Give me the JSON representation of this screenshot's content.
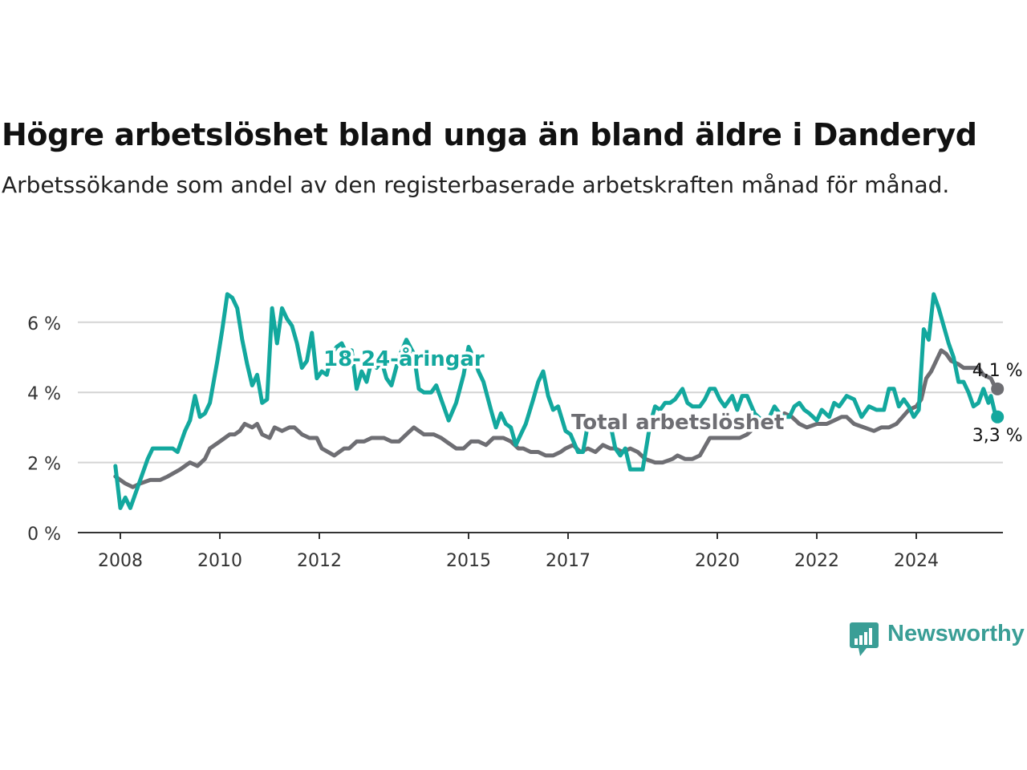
{
  "header": {
    "title": "Högre arbetslöshet bland unga än bland äldre i Danderyd",
    "subtitle": "Arbetssökande som andel av den registerbaserade arbetskraften månad för månad."
  },
  "brand": {
    "name": "Newsworthy",
    "icon": "bar-chart-speech-bubble-icon",
    "color": "#3a9e96"
  },
  "chart_data": {
    "type": "line",
    "grid": true,
    "ylim": [
      0,
      7
    ],
    "xlim": [
      2007.9,
      2025.6
    ],
    "yticks": [
      {
        "value": 0,
        "label": "0 %"
      },
      {
        "value": 2,
        "label": "2 %"
      },
      {
        "value": 4,
        "label": "4 %"
      },
      {
        "value": 6,
        "label": "6 %"
      }
    ],
    "xticks": [
      {
        "value": 2008,
        "label": "2008"
      },
      {
        "value": 2010,
        "label": "2010"
      },
      {
        "value": 2012,
        "label": "2012"
      },
      {
        "value": 2015,
        "label": "2015"
      },
      {
        "value": 2017,
        "label": "2017"
      },
      {
        "value": 2020,
        "label": "2020"
      },
      {
        "value": 2022,
        "label": "2022"
      },
      {
        "value": 2024,
        "label": "2024"
      }
    ],
    "series": [
      {
        "name": "Total arbetslöshet",
        "color": "#6e6e73",
        "end_label": "4,1 %",
        "points": [
          [
            2007.9,
            1.6
          ],
          [
            2008.1,
            1.4
          ],
          [
            2008.25,
            1.3
          ],
          [
            2008.4,
            1.4
          ],
          [
            2008.6,
            1.5
          ],
          [
            2008.8,
            1.5
          ],
          [
            2008.95,
            1.6
          ],
          [
            2009.2,
            1.8
          ],
          [
            2009.4,
            2.0
          ],
          [
            2009.55,
            1.9
          ],
          [
            2009.7,
            2.1
          ],
          [
            2009.8,
            2.4
          ],
          [
            2010.0,
            2.6
          ],
          [
            2010.2,
            2.8
          ],
          [
            2010.3,
            2.8
          ],
          [
            2010.4,
            2.9
          ],
          [
            2010.5,
            3.1
          ],
          [
            2010.65,
            3.0
          ],
          [
            2010.75,
            3.1
          ],
          [
            2010.85,
            2.8
          ],
          [
            2011.0,
            2.7
          ],
          [
            2011.1,
            3.0
          ],
          [
            2011.25,
            2.9
          ],
          [
            2011.4,
            3.0
          ],
          [
            2011.5,
            3.0
          ],
          [
            2011.65,
            2.8
          ],
          [
            2011.8,
            2.7
          ],
          [
            2011.95,
            2.7
          ],
          [
            2012.05,
            2.4
          ],
          [
            2012.3,
            2.2
          ],
          [
            2012.5,
            2.4
          ],
          [
            2012.6,
            2.4
          ],
          [
            2012.75,
            2.6
          ],
          [
            2012.9,
            2.6
          ],
          [
            2013.05,
            2.7
          ],
          [
            2013.3,
            2.7
          ],
          [
            2013.45,
            2.6
          ],
          [
            2013.6,
            2.6
          ],
          [
            2013.75,
            2.8
          ],
          [
            2013.9,
            3.0
          ],
          [
            2014.1,
            2.8
          ],
          [
            2014.3,
            2.8
          ],
          [
            2014.45,
            2.7
          ],
          [
            2014.55,
            2.6
          ],
          [
            2014.75,
            2.4
          ],
          [
            2014.9,
            2.4
          ],
          [
            2015.05,
            2.6
          ],
          [
            2015.2,
            2.6
          ],
          [
            2015.35,
            2.5
          ],
          [
            2015.5,
            2.7
          ],
          [
            2015.6,
            2.7
          ],
          [
            2015.7,
            2.7
          ],
          [
            2015.85,
            2.6
          ],
          [
            2016.0,
            2.4
          ],
          [
            2016.1,
            2.4
          ],
          [
            2016.25,
            2.3
          ],
          [
            2016.4,
            2.3
          ],
          [
            2016.55,
            2.2
          ],
          [
            2016.7,
            2.2
          ],
          [
            2016.85,
            2.3
          ],
          [
            2016.95,
            2.4
          ],
          [
            2017.1,
            2.5
          ],
          [
            2017.25,
            2.3
          ],
          [
            2017.4,
            2.4
          ],
          [
            2017.55,
            2.3
          ],
          [
            2017.7,
            2.5
          ],
          [
            2017.85,
            2.4
          ],
          [
            2017.95,
            2.4
          ],
          [
            2018.1,
            2.3
          ],
          [
            2018.25,
            2.4
          ],
          [
            2018.4,
            2.3
          ],
          [
            2018.55,
            2.1
          ],
          [
            2018.75,
            2.0
          ],
          [
            2018.9,
            2.0
          ],
          [
            2019.1,
            2.1
          ],
          [
            2019.2,
            2.2
          ],
          [
            2019.35,
            2.1
          ],
          [
            2019.5,
            2.1
          ],
          [
            2019.65,
            2.2
          ],
          [
            2019.85,
            2.7
          ],
          [
            2020.0,
            2.7
          ],
          [
            2020.2,
            2.7
          ],
          [
            2020.35,
            2.7
          ],
          [
            2020.45,
            2.7
          ],
          [
            2020.6,
            2.8
          ],
          [
            2020.75,
            3.0
          ],
          [
            2020.9,
            3.0
          ],
          [
            2021.05,
            3.1
          ],
          [
            2021.2,
            3.2
          ],
          [
            2021.35,
            3.4
          ],
          [
            2021.5,
            3.3
          ],
          [
            2021.65,
            3.1
          ],
          [
            2021.8,
            3.0
          ],
          [
            2022.0,
            3.1
          ],
          [
            2022.2,
            3.1
          ],
          [
            2022.35,
            3.2
          ],
          [
            2022.5,
            3.3
          ],
          [
            2022.6,
            3.3
          ],
          [
            2022.75,
            3.1
          ],
          [
            2022.95,
            3.0
          ],
          [
            2023.15,
            2.9
          ],
          [
            2023.3,
            3.0
          ],
          [
            2023.45,
            3.0
          ],
          [
            2023.6,
            3.1
          ],
          [
            2023.85,
            3.5
          ],
          [
            2024.0,
            3.6
          ],
          [
            2024.1,
            3.8
          ],
          [
            2024.2,
            4.4
          ],
          [
            2024.3,
            4.6
          ],
          [
            2024.4,
            4.9
          ],
          [
            2024.5,
            5.2
          ],
          [
            2024.6,
            5.1
          ],
          [
            2024.7,
            4.9
          ],
          [
            2024.85,
            4.8
          ],
          [
            2024.95,
            4.7
          ],
          [
            2025.1,
            4.7
          ],
          [
            2025.25,
            4.7
          ],
          [
            2025.35,
            4.5
          ],
          [
            2025.5,
            4.4
          ],
          [
            2025.6,
            4.1
          ]
        ]
      },
      {
        "name": "18-24-åringar",
        "color": "#13a89e",
        "end_label": "3,3 %",
        "points": [
          [
            2007.9,
            1.9
          ],
          [
            2008.0,
            0.7
          ],
          [
            2008.1,
            1.0
          ],
          [
            2008.2,
            0.7
          ],
          [
            2008.3,
            1.1
          ],
          [
            2008.45,
            1.7
          ],
          [
            2008.55,
            2.1
          ],
          [
            2008.65,
            2.4
          ],
          [
            2008.8,
            2.4
          ],
          [
            2008.95,
            2.4
          ],
          [
            2009.05,
            2.4
          ],
          [
            2009.15,
            2.3
          ],
          [
            2009.3,
            2.9
          ],
          [
            2009.4,
            3.2
          ],
          [
            2009.5,
            3.9
          ],
          [
            2009.6,
            3.3
          ],
          [
            2009.7,
            3.4
          ],
          [
            2009.8,
            3.7
          ],
          [
            2009.95,
            4.9
          ],
          [
            2010.05,
            5.8
          ],
          [
            2010.15,
            6.8
          ],
          [
            2010.25,
            6.7
          ],
          [
            2010.35,
            6.4
          ],
          [
            2010.45,
            5.5
          ],
          [
            2010.55,
            4.8
          ],
          [
            2010.65,
            4.2
          ],
          [
            2010.75,
            4.5
          ],
          [
            2010.85,
            3.7
          ],
          [
            2010.95,
            3.8
          ],
          [
            2011.05,
            6.4
          ],
          [
            2011.15,
            5.4
          ],
          [
            2011.25,
            6.4
          ],
          [
            2011.35,
            6.1
          ],
          [
            2011.45,
            5.9
          ],
          [
            2011.55,
            5.4
          ],
          [
            2011.65,
            4.7
          ],
          [
            2011.75,
            4.9
          ],
          [
            2011.85,
            5.7
          ],
          [
            2011.95,
            4.4
          ],
          [
            2012.05,
            4.6
          ],
          [
            2012.15,
            4.5
          ],
          [
            2012.25,
            5.1
          ],
          [
            2012.35,
            5.3
          ],
          [
            2012.45,
            5.4
          ],
          [
            2012.55,
            5.1
          ],
          [
            2012.65,
            5.2
          ],
          [
            2012.75,
            4.1
          ],
          [
            2012.85,
            4.6
          ],
          [
            2012.95,
            4.3
          ],
          [
            2013.05,
            4.9
          ],
          [
            2013.15,
            4.7
          ],
          [
            2013.25,
            4.9
          ],
          [
            2013.35,
            4.4
          ],
          [
            2013.45,
            4.2
          ],
          [
            2013.6,
            5.0
          ],
          [
            2013.75,
            5.5
          ],
          [
            2013.9,
            5.1
          ],
          [
            2014.0,
            4.1
          ],
          [
            2014.1,
            4.0
          ],
          [
            2014.25,
            4.0
          ],
          [
            2014.35,
            4.2
          ],
          [
            2014.5,
            3.6
          ],
          [
            2014.6,
            3.2
          ],
          [
            2014.75,
            3.7
          ],
          [
            2014.9,
            4.5
          ],
          [
            2015.0,
            5.3
          ],
          [
            2015.1,
            5.0
          ],
          [
            2015.2,
            4.6
          ],
          [
            2015.3,
            4.3
          ],
          [
            2015.45,
            3.5
          ],
          [
            2015.55,
            3.0
          ],
          [
            2015.65,
            3.4
          ],
          [
            2015.75,
            3.1
          ],
          [
            2015.85,
            3.0
          ],
          [
            2015.95,
            2.5
          ],
          [
            2016.05,
            2.8
          ],
          [
            2016.15,
            3.1
          ],
          [
            2016.3,
            3.8
          ],
          [
            2016.4,
            4.3
          ],
          [
            2016.5,
            4.6
          ],
          [
            2016.6,
            3.9
          ],
          [
            2016.7,
            3.5
          ],
          [
            2016.8,
            3.6
          ],
          [
            2016.95,
            2.9
          ],
          [
            2017.05,
            2.8
          ],
          [
            2017.2,
            2.3
          ],
          [
            2017.3,
            2.3
          ],
          [
            2017.4,
            3.1
          ],
          [
            2017.55,
            3.1
          ],
          [
            2017.75,
            3.1
          ],
          [
            2017.85,
            3.1
          ],
          [
            2017.95,
            2.4
          ],
          [
            2018.05,
            2.2
          ],
          [
            2018.15,
            2.4
          ],
          [
            2018.25,
            1.8
          ],
          [
            2018.35,
            1.8
          ],
          [
            2018.5,
            1.8
          ],
          [
            2018.65,
            3.1
          ],
          [
            2018.75,
            3.6
          ],
          [
            2018.85,
            3.5
          ],
          [
            2018.95,
            3.7
          ],
          [
            2019.05,
            3.7
          ],
          [
            2019.15,
            3.8
          ],
          [
            2019.3,
            4.1
          ],
          [
            2019.4,
            3.7
          ],
          [
            2019.5,
            3.6
          ],
          [
            2019.65,
            3.6
          ],
          [
            2019.75,
            3.8
          ],
          [
            2019.85,
            4.1
          ],
          [
            2019.95,
            4.1
          ],
          [
            2020.05,
            3.8
          ],
          [
            2020.15,
            3.6
          ],
          [
            2020.3,
            3.9
          ],
          [
            2020.4,
            3.5
          ],
          [
            2020.5,
            3.9
          ],
          [
            2020.6,
            3.9
          ],
          [
            2020.75,
            3.4
          ],
          [
            2020.9,
            3.2
          ],
          [
            2021.05,
            3.3
          ],
          [
            2021.15,
            3.6
          ],
          [
            2021.25,
            3.4
          ],
          [
            2021.35,
            3.3
          ],
          [
            2021.45,
            3.3
          ],
          [
            2021.55,
            3.6
          ],
          [
            2021.65,
            3.7
          ],
          [
            2021.75,
            3.5
          ],
          [
            2021.85,
            3.4
          ],
          [
            2022.0,
            3.2
          ],
          [
            2022.1,
            3.5
          ],
          [
            2022.25,
            3.3
          ],
          [
            2022.35,
            3.7
          ],
          [
            2022.45,
            3.6
          ],
          [
            2022.6,
            3.9
          ],
          [
            2022.75,
            3.8
          ],
          [
            2022.9,
            3.3
          ],
          [
            2023.05,
            3.6
          ],
          [
            2023.2,
            3.5
          ],
          [
            2023.35,
            3.5
          ],
          [
            2023.45,
            4.1
          ],
          [
            2023.55,
            4.1
          ],
          [
            2023.65,
            3.6
          ],
          [
            2023.75,
            3.8
          ],
          [
            2023.85,
            3.6
          ],
          [
            2023.95,
            3.3
          ],
          [
            2024.05,
            3.5
          ],
          [
            2024.15,
            5.8
          ],
          [
            2024.25,
            5.5
          ],
          [
            2024.35,
            6.8
          ],
          [
            2024.45,
            6.4
          ],
          [
            2024.55,
            5.9
          ],
          [
            2024.65,
            5.4
          ],
          [
            2024.75,
            5.0
          ],
          [
            2024.85,
            4.3
          ],
          [
            2024.95,
            4.3
          ],
          [
            2025.05,
            4.0
          ],
          [
            2025.15,
            3.6
          ],
          [
            2025.25,
            3.7
          ],
          [
            2025.35,
            4.1
          ],
          [
            2025.45,
            3.7
          ],
          [
            2025.5,
            3.9
          ],
          [
            2025.6,
            3.3
          ]
        ]
      }
    ]
  }
}
